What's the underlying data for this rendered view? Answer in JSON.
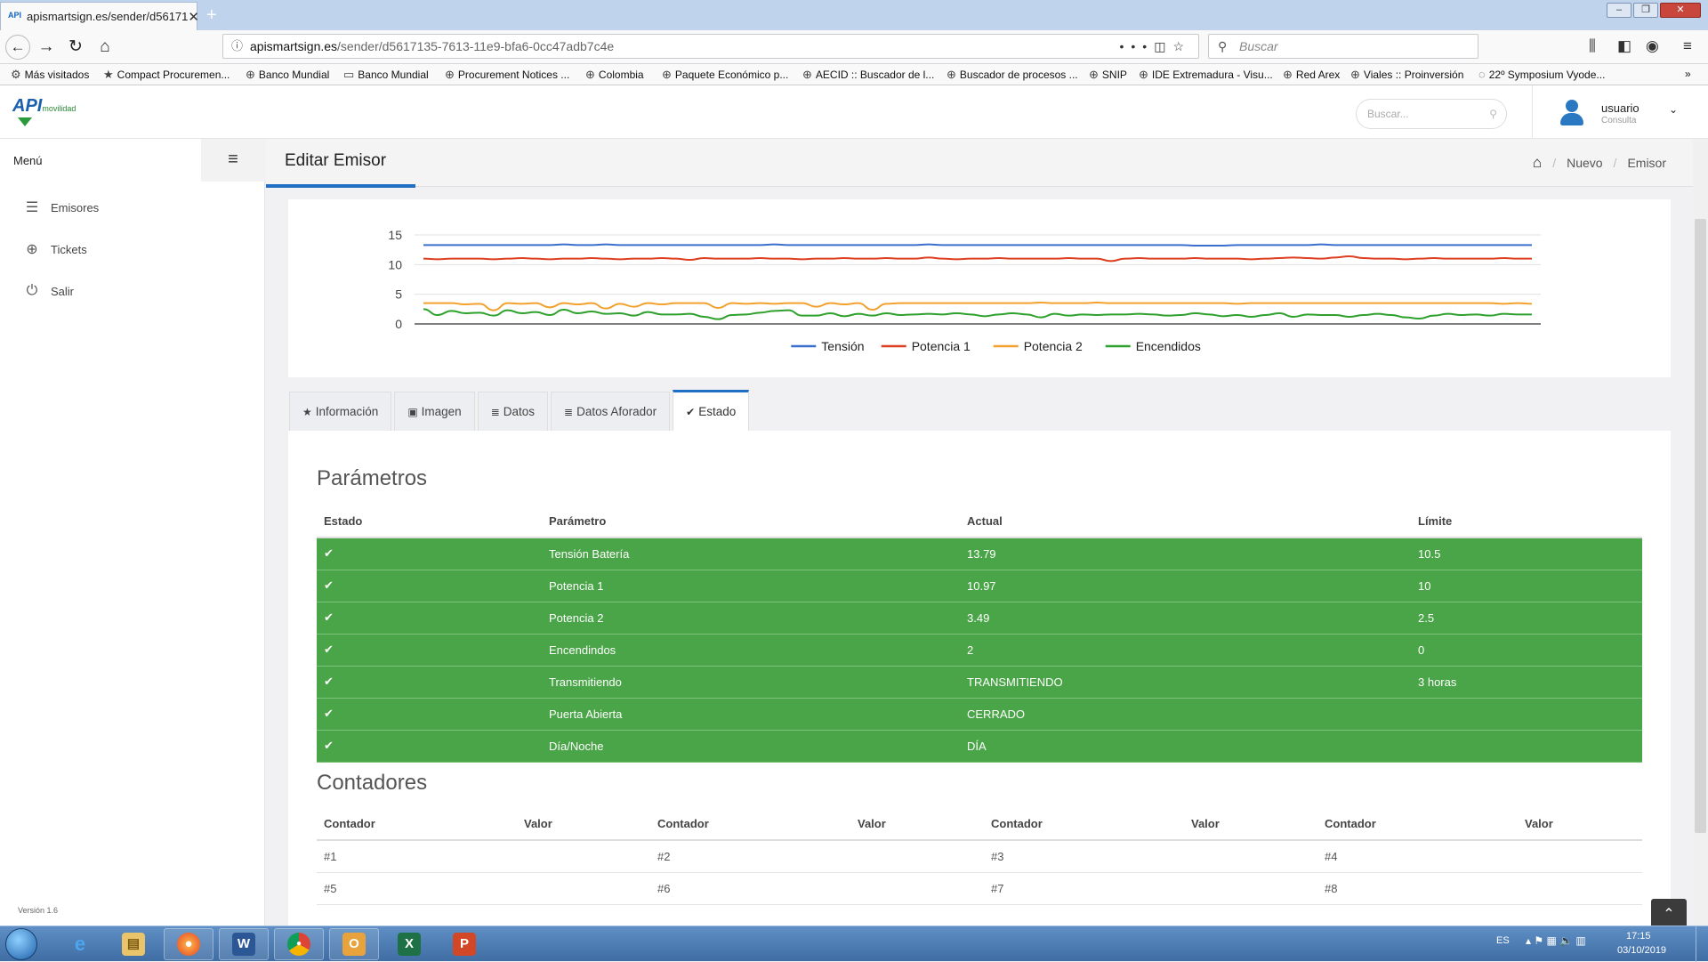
{
  "browser": {
    "tab_title": "apismartsign.es/sender/d56171",
    "new_tab": "+",
    "url_host": "apismartsign.es",
    "url_path": "/sender/d5617135-7613-11e9-bfa6-0cc47adb7c4e",
    "search_placeholder": "Buscar",
    "bookmarks": [
      "Más visitados",
      "Compact Procuremen...",
      "Banco Mundial",
      "Banco Mundial",
      "Procurement Notices ...",
      "Colombia",
      "Paquete Económico p...",
      "AECID :: Buscador de l...",
      "Buscador de procesos ...",
      "SNIP",
      "IDE Extremadura - Visu...",
      "Red Arex",
      "Viales :: Proinversión",
      "22º Symposium Vyode..."
    ]
  },
  "app": {
    "logo_text": "API",
    "logo_sub": "movilidad",
    "search_placeholder": "Buscar...",
    "user_name": "usuario",
    "user_role": "Consulta"
  },
  "sidebar": {
    "menu_label": "Menú",
    "items": [
      {
        "label": "Emisores",
        "icon": "list-icon"
      },
      {
        "label": "Tickets",
        "icon": "globe-icon"
      },
      {
        "label": "Salir",
        "icon": "power-icon"
      }
    ],
    "version": "Versión 1.6"
  },
  "page": {
    "title": "Editar Emisor",
    "breadcrumb": [
      "Nuevo",
      "Emisor"
    ]
  },
  "chart_data": {
    "type": "line",
    "ylim": [
      0,
      15
    ],
    "yticks": [
      0,
      5,
      10,
      15
    ],
    "grid": true,
    "legend_position": "bottom",
    "series": [
      {
        "name": "Tensión",
        "color": "#3a6fce",
        "values": [
          13.3,
          13.3,
          13.3,
          13.3,
          13.3,
          13.3,
          13.3,
          13.3,
          13.3,
          13.3,
          13.4,
          13.3,
          13.3,
          13.4,
          13.3,
          13.3,
          13.3,
          13.3,
          13.3,
          13.3,
          13.3,
          13.3,
          13.3,
          13.3,
          13.3,
          13.4,
          13.3,
          13.3,
          13.3,
          13.3,
          13.3,
          13.3,
          13.3,
          13.3,
          13.3,
          13.3,
          13.4,
          13.3,
          13.3,
          13.3,
          13.3,
          13.3,
          13.3,
          13.3,
          13.3,
          13.3,
          13.3,
          13.3,
          13.3,
          13.3,
          13.3,
          13.3,
          13.3,
          13.3,
          13.3,
          13.2,
          13.2,
          13.2,
          13.3,
          13.3,
          13.3,
          13.3,
          13.3,
          13.3,
          13.4,
          13.3,
          13.3,
          13.3,
          13.3,
          13.3,
          13.3,
          13.3,
          13.3,
          13.3,
          13.3,
          13.3,
          13.3,
          13.3,
          13.3,
          13.3
        ]
      },
      {
        "name": "Potencia 1",
        "color": "#de3f20",
        "values": [
          11.0,
          10.9,
          11.0,
          11.0,
          11.0,
          10.9,
          11.0,
          11.1,
          11.0,
          10.9,
          11.0,
          11.0,
          11.1,
          11.0,
          10.9,
          11.0,
          11.0,
          11.1,
          11.0,
          10.8,
          11.1,
          11.0,
          11.0,
          11.0,
          11.1,
          11.0,
          11.0,
          10.9,
          11.0,
          11.0,
          11.1,
          11.0,
          11.0,
          11.1,
          11.0,
          11.0,
          11.2,
          11.0,
          10.9,
          11.0,
          11.0,
          11.1,
          11.0,
          11.0,
          11.0,
          11.0,
          11.1,
          11.0,
          11.0,
          10.6,
          11.0,
          11.1,
          11.0,
          11.0,
          11.0,
          11.1,
          11.0,
          11.0,
          11.0,
          10.9,
          11.0,
          11.1,
          11.2,
          11.1,
          11.0,
          11.2,
          11.4,
          11.1,
          11.0,
          11.0,
          10.9,
          11.0,
          11.1,
          11.0,
          11.0,
          11.0,
          11.0,
          11.1,
          11.0,
          11.0
        ]
      },
      {
        "name": "Potencia 2",
        "color": "#f2a12e",
        "values": [
          3.5,
          3.5,
          3.5,
          3.3,
          3.4,
          2.3,
          3.5,
          3.4,
          3.5,
          2.8,
          3.5,
          3.3,
          3.5,
          2.6,
          3.4,
          2.9,
          3.5,
          3.3,
          3.5,
          3.5,
          3.5,
          2.7,
          3.5,
          3.4,
          3.5,
          3.4,
          3.5,
          3.5,
          2.9,
          3.5,
          3.3,
          3.5,
          2.4,
          3.4,
          3.5,
          3.5,
          3.5,
          3.5,
          3.5,
          3.5,
          3.5,
          3.5,
          3.5,
          3.5,
          3.6,
          3.5,
          3.5,
          3.5,
          3.6,
          3.5,
          3.5,
          3.5,
          3.5,
          3.5,
          3.5,
          3.5,
          3.5,
          3.5,
          3.4,
          3.5,
          3.5,
          3.5,
          3.5,
          3.5,
          3.5,
          3.5,
          3.5,
          3.5,
          3.5,
          3.5,
          3.5,
          3.5,
          3.5,
          3.5,
          3.5,
          3.5,
          3.5,
          3.4,
          3.5,
          3.4
        ]
      },
      {
        "name": "Encendidos",
        "color": "#2ea02c",
        "values": [
          2.5,
          1.5,
          2.2,
          1.8,
          1.9,
          1.4,
          2.3,
          1.8,
          2.0,
          1.5,
          2.4,
          1.8,
          2.1,
          1.7,
          1.8,
          1.4,
          2.0,
          1.6,
          1.6,
          1.7,
          1.2,
          0.8,
          1.5,
          1.6,
          1.9,
          2.2,
          2.3,
          1.4,
          1.4,
          1.8,
          1.3,
          1.7,
          1.4,
          1.8,
          1.5,
          1.6,
          1.7,
          1.6,
          1.8,
          1.6,
          1.3,
          1.6,
          1.8,
          1.6,
          1.1,
          1.7,
          1.4,
          1.6,
          1.5,
          1.6,
          1.6,
          1.7,
          1.6,
          1.4,
          1.5,
          1.8,
          1.6,
          1.3,
          1.5,
          1.2,
          1.5,
          1.8,
          1.2,
          1.6,
          1.5,
          1.5,
          1.2,
          1.5,
          1.7,
          1.5,
          1.1,
          0.9,
          1.4,
          1.7,
          1.5,
          1.6,
          1.4,
          1.7,
          1.6,
          1.6
        ]
      }
    ]
  },
  "tabs": [
    {
      "label": "Información",
      "icon": "star-icon",
      "glyph": "★"
    },
    {
      "label": "Imagen",
      "icon": "image-icon",
      "glyph": "▣"
    },
    {
      "label": "Datos",
      "icon": "database-icon",
      "glyph": "≣"
    },
    {
      "label": "Datos Aforador",
      "icon": "database-icon",
      "glyph": "≣"
    },
    {
      "label": "Estado",
      "icon": "check-icon",
      "glyph": "✔"
    }
  ],
  "parametros": {
    "title": "Parámetros",
    "headers": [
      "Estado",
      "Parámetro",
      "Actual",
      "Límite"
    ],
    "rows": [
      {
        "param": "Tensión Batería",
        "actual": "13.79",
        "limite": "10.5"
      },
      {
        "param": "Potencia 1",
        "actual": "10.97",
        "limite": "10"
      },
      {
        "param": "Potencia 2",
        "actual": "3.49",
        "limite": "2.5"
      },
      {
        "param": "Encendindos",
        "actual": "2",
        "limite": "0"
      },
      {
        "param": "Transmitiendo",
        "actual": "TRANSMITIENDO",
        "limite": "3 horas"
      },
      {
        "param": "Puerta Abierta",
        "actual": "CERRADO",
        "limite": ""
      },
      {
        "param": "Día/Noche",
        "actual": "DÍA",
        "limite": ""
      }
    ]
  },
  "contadores": {
    "title": "Contadores",
    "headers": [
      "Contador",
      "Valor",
      "Contador",
      "Valor",
      "Contador",
      "Valor",
      "Contador",
      "Valor"
    ],
    "rows": [
      [
        "#1",
        "",
        "#2",
        "",
        "#3",
        "",
        "#4",
        ""
      ],
      [
        "#5",
        "",
        "#6",
        "",
        "#7",
        "",
        "#8",
        ""
      ]
    ]
  },
  "taskbar": {
    "lang": "ES",
    "time": "17:15",
    "date": "03/10/2019"
  }
}
